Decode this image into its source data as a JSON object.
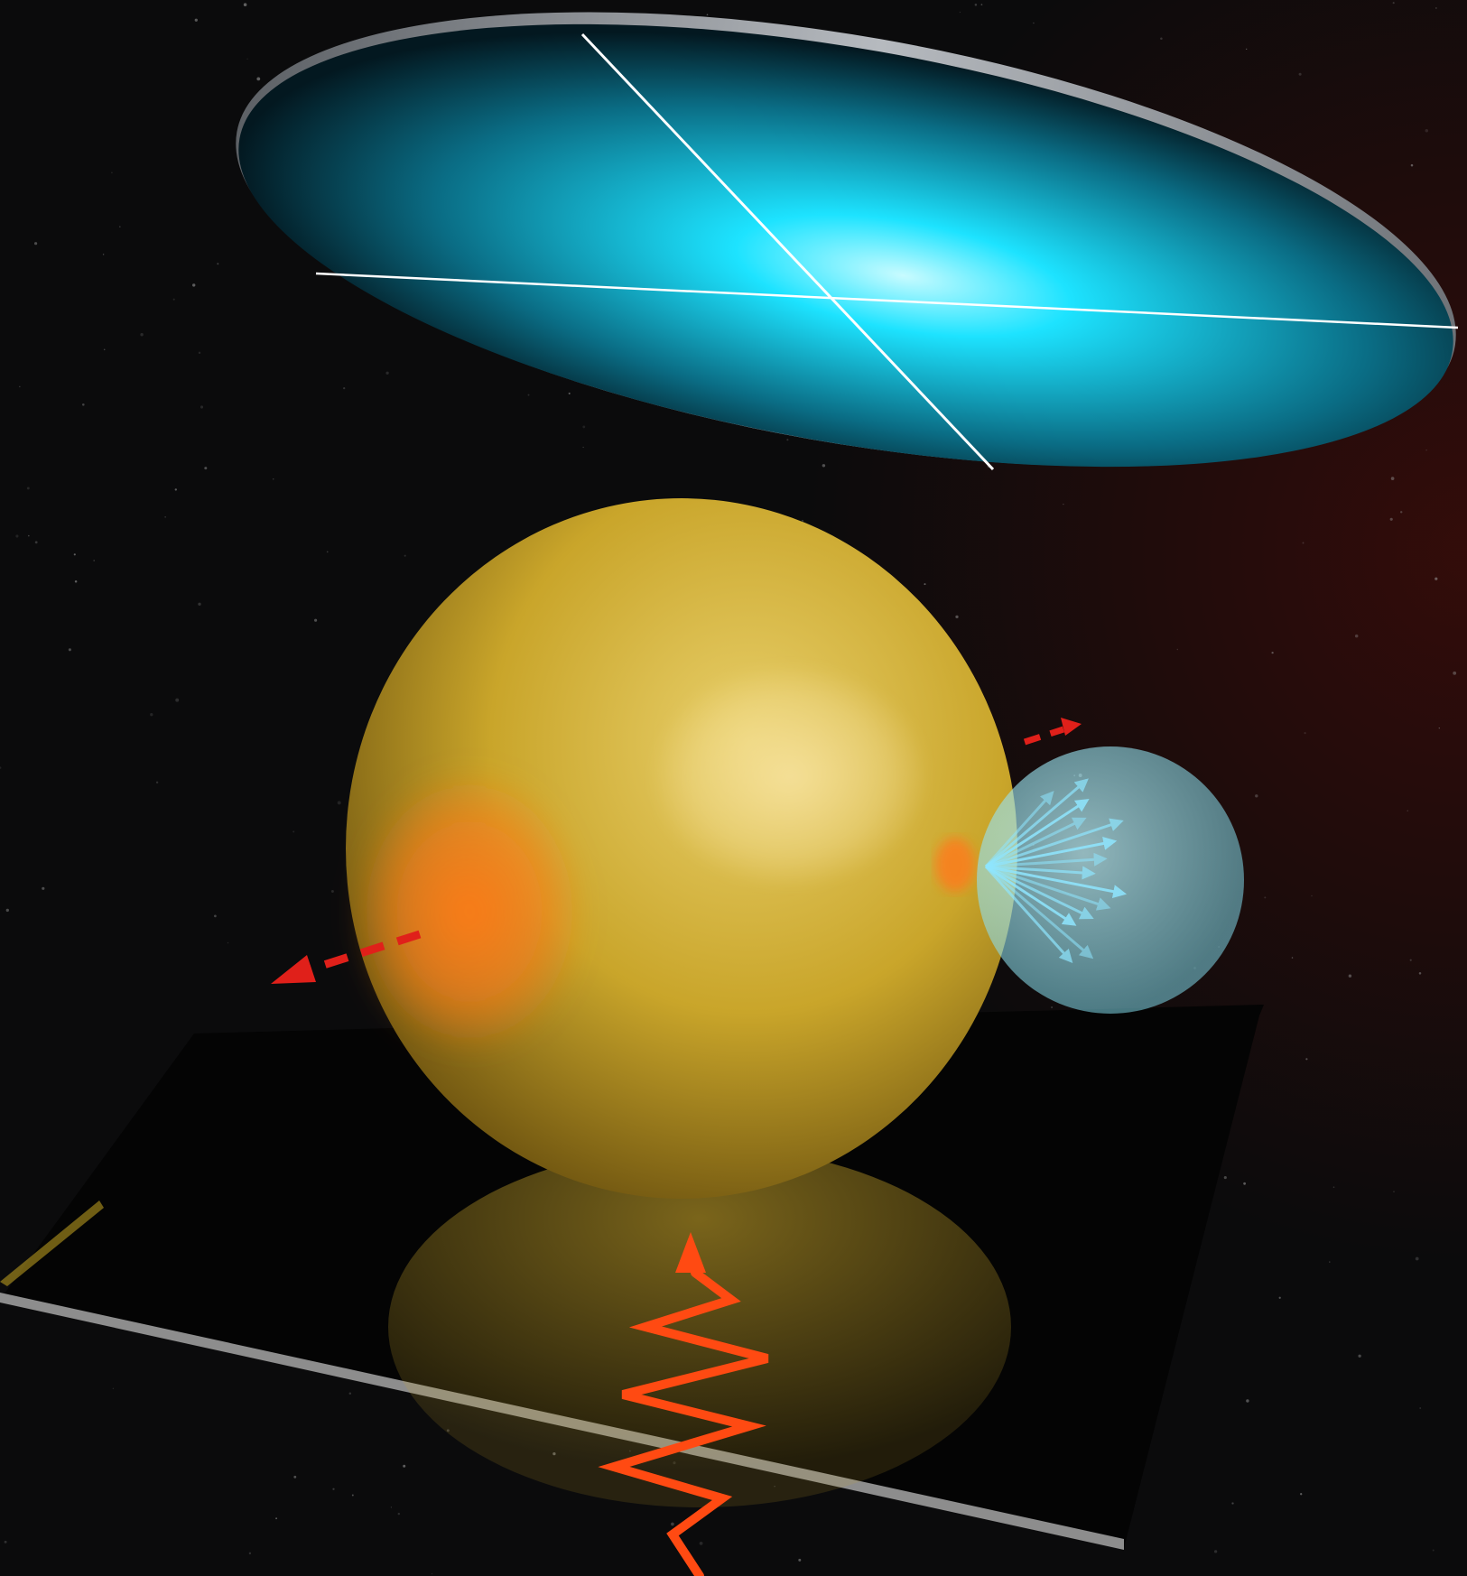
{
  "scene": {
    "colors": {
      "background": "#0b0b0c",
      "background_glow": "#3a0d0a",
      "detector_glow": "#1de3ff",
      "detector_rim": "#8a8f94",
      "crosshair": "#ffffff",
      "droplet": "#c9a52a",
      "droplet_hot_spot": "#ff7a1a",
      "droplet_bright_region": "#f7e3a0",
      "emission_bubble": "#7fd6e6",
      "emission_arrows": "#8fe6ff",
      "dashed_arrows": "#e0201a",
      "pulse_wave": "#ff4a12",
      "substrate": "#040404",
      "substrate_edge": "#8d8d8d"
    },
    "icons": {
      "detector": "detector-screen-icon",
      "droplet": "droplet-sphere-icon",
      "bubble": "emission-bubble-icon",
      "pulse": "laser-pulse-icon",
      "dashed_arrow": "dashed-arrow-icon",
      "substrate": "substrate-plate-icon"
    },
    "emission_arrow_count": 14
  }
}
